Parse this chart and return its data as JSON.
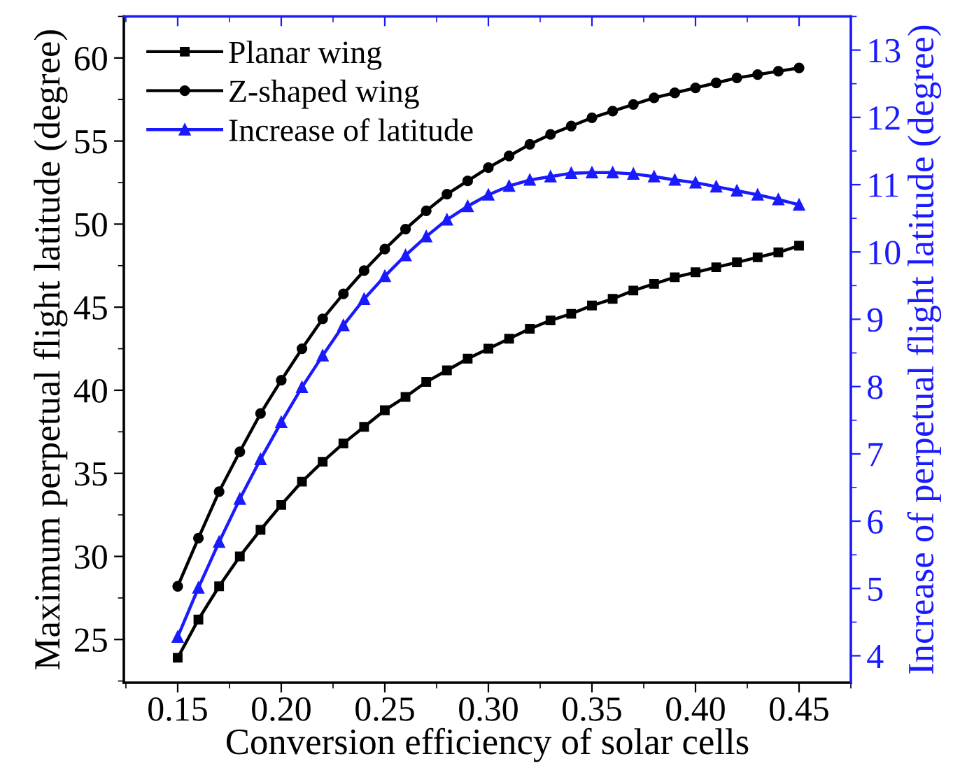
{
  "chart_data": {
    "type": "line",
    "xlabel": "Conversion efficiency of solar cells",
    "ylabel": "Maximum perpetual flight latitude (degree)",
    "y2label": "Increase of perpetual flight latitude (degree)",
    "x": [
      0.15,
      0.16,
      0.17,
      0.18,
      0.19,
      0.2,
      0.21,
      0.22,
      0.23,
      0.24,
      0.25,
      0.26,
      0.27,
      0.28,
      0.29,
      0.3,
      0.31,
      0.32,
      0.33,
      0.34,
      0.35,
      0.36,
      0.37,
      0.38,
      0.39,
      0.4,
      0.41,
      0.42,
      0.43,
      0.44,
      0.45
    ],
    "xlim": [
      0.124,
      0.475
    ],
    "xticks": [
      0.15,
      {
        "value": 0.2,
        "label": "0.20"
      },
      0.25,
      {
        "value": 0.3,
        "label": "0.30"
      },
      0.35,
      {
        "value": 0.4,
        "label": "0.40"
      },
      0.45
    ],
    "ylim": [
      22.4,
      62.5
    ],
    "yticks": [
      25,
      30,
      35,
      40,
      45,
      50,
      55,
      60
    ],
    "y2lim": [
      3.6,
      13.5
    ],
    "y2ticks": [
      4,
      5,
      6,
      7,
      8,
      9,
      10,
      11,
      12,
      13
    ],
    "legend": "top left",
    "series": [
      {
        "name": "Planar wing",
        "color": "#000000",
        "marker": "square",
        "values": [
          23.9,
          26.2,
          28.2,
          30.0,
          31.6,
          33.1,
          34.5,
          35.7,
          36.8,
          37.8,
          38.8,
          39.6,
          40.5,
          41.2,
          41.9,
          42.5,
          43.1,
          43.7,
          44.2,
          44.6,
          45.1,
          45.5,
          46.0,
          46.4,
          46.8,
          47.1,
          47.4,
          47.7,
          48.0,
          48.3,
          48.7
        ]
      },
      {
        "name": "Z-shaped wing",
        "color": "#000000",
        "marker": "circle",
        "values": [
          28.2,
          31.1,
          33.9,
          36.3,
          38.6,
          40.6,
          42.5,
          44.3,
          45.8,
          47.2,
          48.5,
          49.7,
          50.8,
          51.8,
          52.6,
          53.4,
          54.1,
          54.8,
          55.4,
          55.9,
          56.4,
          56.8,
          57.2,
          57.6,
          57.9,
          58.2,
          58.5,
          58.8,
          59.0,
          59.2,
          59.4
        ]
      },
      {
        "name": "Increase of latitude",
        "color": "#1a1aff",
        "marker": "triangle",
        "axis": "y2",
        "values": [
          4.28,
          5.01,
          5.69,
          6.33,
          6.92,
          7.47,
          7.99,
          8.46,
          8.91,
          9.3,
          9.64,
          9.95,
          10.23,
          10.48,
          10.68,
          10.85,
          10.98,
          11.07,
          11.12,
          11.17,
          11.18,
          11.18,
          11.16,
          11.12,
          11.07,
          11.03,
          10.97,
          10.91,
          10.85,
          10.78,
          10.7
        ]
      }
    ]
  }
}
